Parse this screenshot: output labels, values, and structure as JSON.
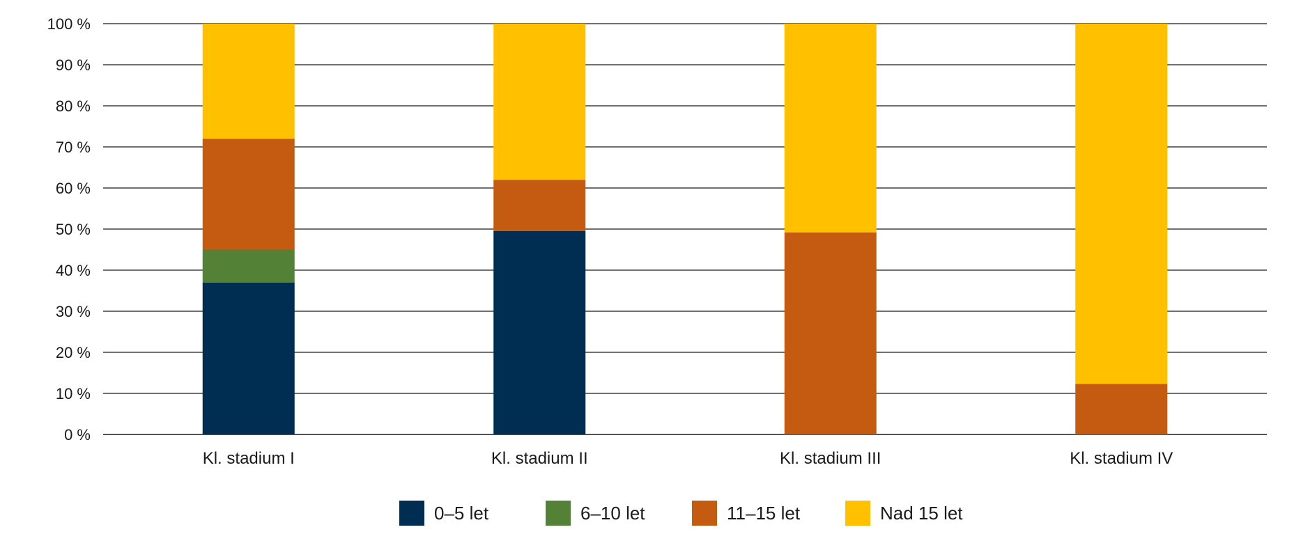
{
  "chart_data": {
    "type": "bar",
    "stacked": true,
    "categories": [
      "Kl. stadium I",
      "Kl. stadium II",
      "Kl. stadium III",
      "Kl. stadium IV"
    ],
    "series": [
      {
        "name": "0–5 let",
        "color": "#002D52",
        "values": [
          37,
          49.5,
          0,
          0
        ]
      },
      {
        "name": "6–10 let",
        "color": "#538135",
        "values": [
          8,
          0,
          0,
          0
        ]
      },
      {
        "name": "11–15 let",
        "color": "#C55A11",
        "values": [
          27,
          12.5,
          49.2,
          12.3
        ]
      },
      {
        "name": "Nad 15 let",
        "color": "#FFC000",
        "values": [
          28,
          38,
          50.8,
          87.7
        ]
      }
    ],
    "ylim": [
      0,
      100
    ],
    "yticks": [
      0,
      10,
      20,
      30,
      40,
      50,
      60,
      70,
      80,
      90,
      100
    ],
    "ytick_labels": [
      "0 %",
      "10 %",
      "20 %",
      "30 %",
      "40 %",
      "50 %",
      "60 %",
      "70 %",
      "80 %",
      "90 %",
      "100 %"
    ],
    "grid": true,
    "legend_position": "bottom-center"
  }
}
